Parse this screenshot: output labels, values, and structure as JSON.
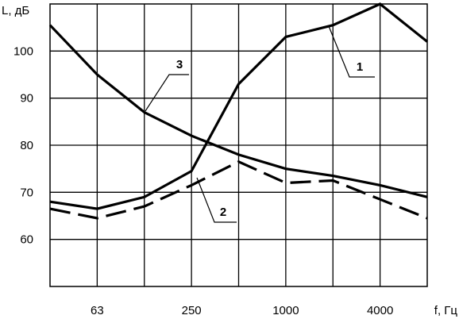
{
  "chart_data": {
    "type": "line",
    "xlabel": "f, Гц",
    "ylabel": "L, дБ",
    "x_tick_labels": [
      "63",
      "250",
      "1000",
      "4000"
    ],
    "x_range_octaves": [
      0,
      8
    ],
    "x_tick_positions_octaves": [
      1,
      3,
      5,
      7
    ],
    "y_ticks": [
      60,
      70,
      80,
      90,
      100
    ],
    "ylim": [
      50,
      110
    ],
    "grid": true,
    "series": [
      {
        "name": "1",
        "style": "solid",
        "color": "#000000",
        "points": [
          [
            0,
            68
          ],
          [
            1,
            66.5
          ],
          [
            2,
            69
          ],
          [
            3,
            74.5
          ],
          [
            4,
            93
          ],
          [
            5,
            103
          ],
          [
            6,
            105.5
          ],
          [
            7,
            110
          ],
          [
            8,
            102
          ]
        ]
      },
      {
        "name": "2",
        "style": "dashed",
        "color": "#000000",
        "points": [
          [
            0,
            66.5
          ],
          [
            1,
            64.5
          ],
          [
            2,
            67
          ],
          [
            3,
            71.5
          ],
          [
            4,
            76.5
          ],
          [
            5,
            72
          ],
          [
            6,
            72.5
          ],
          [
            7,
            68.5
          ],
          [
            8,
            64.5
          ]
        ]
      },
      {
        "name": "3",
        "style": "solid",
        "color": "#000000",
        "points": [
          [
            0,
            105.5
          ],
          [
            1,
            95
          ],
          [
            2,
            87
          ],
          [
            3,
            82
          ],
          [
            4,
            78
          ],
          [
            5,
            75
          ],
          [
            6,
            73.5
          ],
          [
            7,
            71.5
          ],
          [
            8,
            69
          ]
        ]
      }
    ]
  }
}
